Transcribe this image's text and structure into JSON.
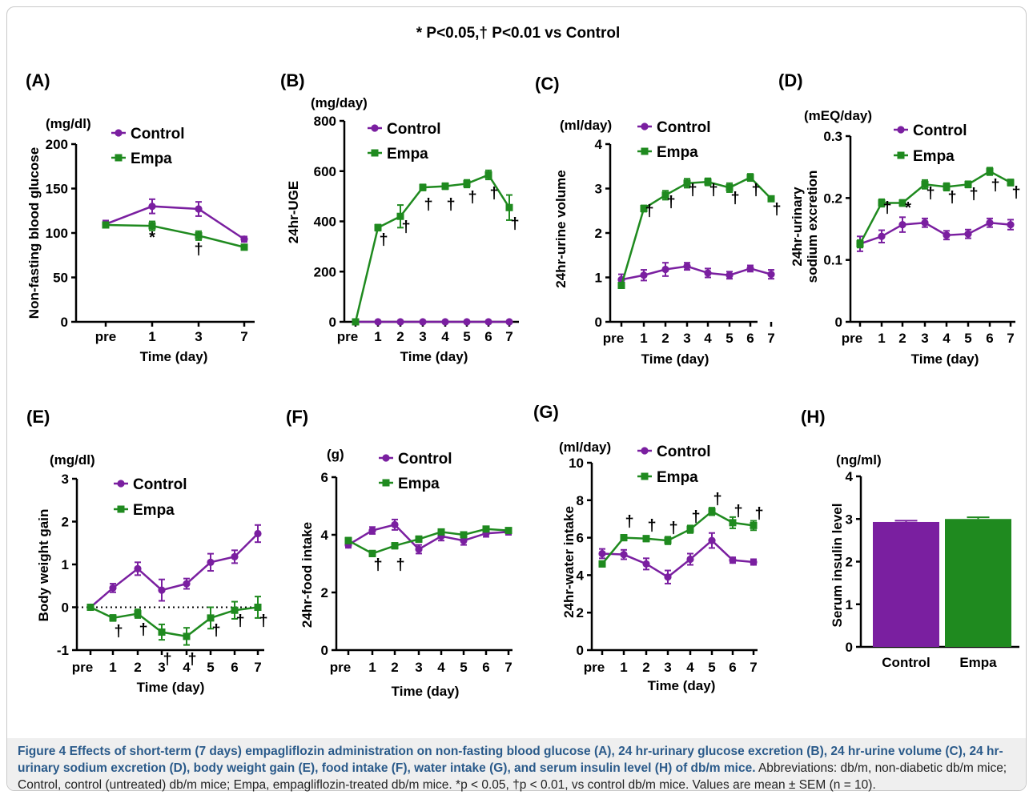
{
  "header_note": "* P<0.05,† P<0.01 vs Control",
  "colors": {
    "control": "#7a1fa0",
    "empa": "#1f8a1f"
  },
  "caption": {
    "bold": "Figure 4 Effects of short-term (7 days) empagliflozin administration on non-fasting blood glucose (A), 24 hr-urinary glucose excretion (B), 24 hr-urine volume (C), 24 hr-urinary sodium excretion (D), body weight gain (E), food intake (F), water intake (G), and serum insulin level (H) of db/m mice.",
    "rest": " Abbreviations: db/m, non-diabetic db/m mice; Control, control (untreated) db/m mice; Empa, empagliflozin-treated db/m mice. *p < 0.05, †p < 0.01, vs control db/m mice. Values are mean ± SEM (n = 10)."
  },
  "chart_data": [
    {
      "id": "A",
      "panel": "(A)",
      "type": "line",
      "unit": "(mg/dl)",
      "ylabel": "Non-fasting blood glucose",
      "xlabel": "Time (day)",
      "x": [
        "pre",
        "1",
        "3",
        "7"
      ],
      "ylim": [
        0,
        200
      ],
      "yticks": [
        0,
        50,
        100,
        150,
        200
      ],
      "legend": {
        "control": "Control",
        "empa": "Empa"
      },
      "series": [
        {
          "name": "Control",
          "values": [
            110,
            130,
            127,
            93
          ],
          "err": [
            4,
            8,
            8,
            3
          ]
        },
        {
          "name": "Empa",
          "values": [
            109,
            108,
            97,
            84
          ],
          "err": [
            3,
            5,
            5,
            3
          ]
        }
      ],
      "marks": [
        "",
        "*",
        "†",
        ""
      ]
    },
    {
      "id": "B",
      "panel": "(B)",
      "type": "line",
      "unit": "(mg/day)",
      "ylabel": "24hr-UGE",
      "xlabel": "Time (day)",
      "x": [
        "pre",
        "1",
        "2",
        "3",
        "4",
        "5",
        "6",
        "7"
      ],
      "ylim": [
        0,
        800
      ],
      "yticks": [
        0,
        200,
        400,
        600,
        800
      ],
      "legend": {
        "control": "Control",
        "empa": "Empa"
      },
      "series": [
        {
          "name": "Control",
          "values": [
            0,
            0,
            0,
            0,
            0,
            0,
            0,
            0
          ],
          "err": [
            0,
            0,
            0,
            0,
            0,
            0,
            0,
            0
          ]
        },
        {
          "name": "Empa",
          "values": [
            0,
            375,
            420,
            535,
            540,
            550,
            585,
            455
          ],
          "err": [
            0,
            12,
            45,
            12,
            12,
            15,
            18,
            50
          ]
        }
      ],
      "marks": [
        "",
        "†",
        "†",
        "†",
        "†",
        "†",
        "†",
        "†"
      ]
    },
    {
      "id": "C",
      "panel": "(C)",
      "type": "line",
      "unit": "(ml/day)",
      "ylabel": "24hr-urine volume",
      "xlabel": "Time (day)",
      "x": [
        "pre",
        "1",
        "2",
        "3",
        "4",
        "5",
        "6",
        "7"
      ],
      "ylim": [
        0,
        4
      ],
      "yticks": [
        0,
        1,
        2,
        3,
        4
      ],
      "legend": {
        "control": "Control",
        "empa": "Empa"
      },
      "series": [
        {
          "name": "Control",
          "values": [
            0.95,
            1.05,
            1.18,
            1.25,
            1.1,
            1.05,
            1.2,
            1.07
          ],
          "err": [
            0.12,
            0.12,
            0.15,
            0.08,
            0.1,
            0.08,
            0.07,
            0.1
          ]
        },
        {
          "name": "Empa",
          "values": [
            0.82,
            2.55,
            2.85,
            3.12,
            3.15,
            3.02,
            3.25,
            2.77
          ],
          "err": [
            0.05,
            0.07,
            0.1,
            0.1,
            0.08,
            0.1,
            0.08,
            0.05
          ]
        }
      ],
      "marks": [
        "",
        "†",
        "†",
        "†",
        "†",
        "†",
        "†",
        "†"
      ]
    },
    {
      "id": "D",
      "panel": "(D)",
      "type": "line",
      "unit": "(mEQ/day)",
      "ylabel": [
        "24hr-urinary",
        "sodium excretion"
      ],
      "xlabel": "Time (day)",
      "x": [
        "pre",
        "1",
        "2",
        "3",
        "4",
        "5",
        "6",
        "7"
      ],
      "ylim": [
        0,
        0.3
      ],
      "yticks": [
        0,
        0.1,
        0.2,
        0.3
      ],
      "legend": {
        "control": "Control",
        "empa": "Empa"
      },
      "series": [
        {
          "name": "Control",
          "values": [
            0.126,
            0.138,
            0.157,
            0.16,
            0.14,
            0.142,
            0.16,
            0.157
          ],
          "err": [
            0.012,
            0.01,
            0.012,
            0.007,
            0.007,
            0.007,
            0.007,
            0.008
          ]
        },
        {
          "name": "Empa",
          "values": [
            0.126,
            0.192,
            0.192,
            0.222,
            0.218,
            0.222,
            0.243,
            0.225
          ],
          "err": [
            0.006,
            0.006,
            0.005,
            0.007,
            0.006,
            0.005,
            0.006,
            0.005
          ]
        }
      ],
      "marks": [
        "",
        "†",
        "*",
        "†",
        "†",
        "†",
        "†",
        "†"
      ]
    },
    {
      "id": "E",
      "panel": "(E)",
      "type": "line",
      "unit": "(mg/dl)",
      "ylabel": "Body weight gain",
      "xlabel": "Time (day)",
      "x": [
        "pre",
        "1",
        "2",
        "3",
        "4",
        "5",
        "6",
        "7"
      ],
      "ylim": [
        -1,
        3
      ],
      "yticks": [
        -1,
        0,
        1,
        2,
        3
      ],
      "zero_line": true,
      "legend": {
        "control": "Control",
        "empa": "Empa"
      },
      "series": [
        {
          "name": "Control",
          "values": [
            0,
            0.45,
            0.9,
            0.4,
            0.55,
            1.05,
            1.18,
            1.72
          ],
          "err": [
            0,
            0.1,
            0.15,
            0.25,
            0.12,
            0.2,
            0.15,
            0.2
          ]
        },
        {
          "name": "Empa",
          "values": [
            0,
            -0.25,
            -0.15,
            -0.58,
            -0.68,
            -0.25,
            -0.07,
            0
          ],
          "err": [
            0,
            0.07,
            0.1,
            0.18,
            0.2,
            0.25,
            0.2,
            0.25
          ]
        }
      ],
      "marks": [
        "",
        "†",
        "†",
        "†",
        "†",
        "†",
        "†",
        "†"
      ]
    },
    {
      "id": "F",
      "panel": "(F)",
      "type": "line",
      "unit": "(g)",
      "ylabel": "24hr-food intake",
      "xlabel": "Time (day)",
      "x": [
        "pre",
        "1",
        "2",
        "3",
        "4",
        "5",
        "6",
        "7"
      ],
      "ylim": [
        0,
        6
      ],
      "yticks": [
        0,
        2,
        4,
        6
      ],
      "legend": {
        "control": "Control",
        "empa": "Empa"
      },
      "series": [
        {
          "name": "Control",
          "values": [
            3.65,
            4.15,
            4.35,
            3.5,
            3.95,
            3.8,
            4.05,
            4.1
          ],
          "err": [
            0.1,
            0.12,
            0.18,
            0.15,
            0.15,
            0.15,
            0.12,
            0.1
          ]
        },
        {
          "name": "Empa",
          "values": [
            3.8,
            3.35,
            3.62,
            3.85,
            4.1,
            4.0,
            4.2,
            4.15
          ],
          "err": [
            0.1,
            0.1,
            0.1,
            0.1,
            0.08,
            0.08,
            0.08,
            0.08
          ]
        }
      ],
      "marks": [
        "",
        "†",
        "†",
        "",
        "",
        "",
        "",
        ""
      ]
    },
    {
      "id": "G",
      "panel": "(G)",
      "type": "line",
      "unit": "(ml/day)",
      "ylabel": "24hr-water intake",
      "xlabel": "Time (day)",
      "x": [
        "pre",
        "1",
        "2",
        "3",
        "4",
        "5",
        "6",
        "7"
      ],
      "ylim": [
        0,
        10
      ],
      "yticks": [
        0,
        2,
        4,
        6,
        8,
        10
      ],
      "legend": {
        "control": "Control",
        "empa": "Empa"
      },
      "series": [
        {
          "name": "Control",
          "values": [
            5.15,
            5.1,
            4.6,
            3.9,
            4.85,
            5.85,
            4.8,
            4.7
          ],
          "err": [
            0.25,
            0.25,
            0.3,
            0.35,
            0.3,
            0.4,
            0.15,
            0.15
          ]
        },
        {
          "name": "Empa",
          "values": [
            4.6,
            6.0,
            5.95,
            5.85,
            6.45,
            7.4,
            6.8,
            6.65
          ],
          "err": [
            0.15,
            0.15,
            0.15,
            0.2,
            0.2,
            0.2,
            0.3,
            0.25
          ]
        }
      ],
      "marks": [
        "",
        "†",
        "†",
        "†",
        "†",
        "†",
        "†",
        "†"
      ]
    },
    {
      "id": "H",
      "panel": "(H)",
      "type": "bar",
      "unit": "(ng/ml)",
      "ylabel": "Serum insulin level",
      "categories": [
        "Control",
        "Empa"
      ],
      "values": [
        2.93,
        3.0
      ],
      "err": [
        0.03,
        0.04
      ],
      "ylim": [
        0,
        4
      ],
      "yticks": [
        0,
        1,
        2,
        3,
        4
      ]
    }
  ]
}
